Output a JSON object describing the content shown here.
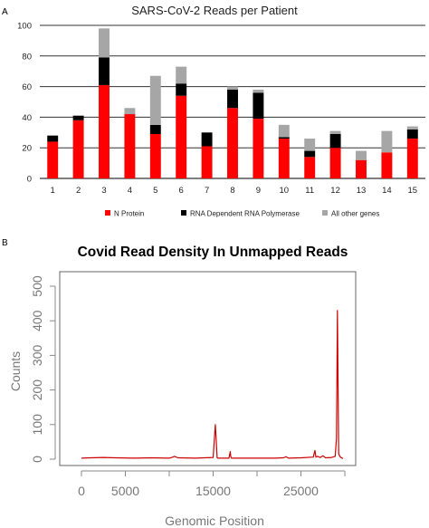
{
  "panel_labels": {
    "a": "A",
    "b": "B"
  },
  "chart_data": [
    {
      "type": "bar",
      "stacked": true,
      "title": "SARS-CoV-2 Reads per Patient",
      "xlabel": "",
      "ylabel": "",
      "categories": [
        "1",
        "2",
        "3",
        "4",
        "5",
        "6",
        "7",
        "8",
        "9",
        "10",
        "11",
        "12",
        "13",
        "14",
        "15"
      ],
      "ylim": [
        0,
        100
      ],
      "yticks": [
        0,
        20,
        40,
        60,
        80,
        100
      ],
      "grid": "horizontal",
      "legend_position": "bottom",
      "series": [
        {
          "name": "N Protein",
          "color": "#ff0000",
          "values": [
            24,
            38,
            61,
            42,
            29,
            54,
            21,
            46,
            39,
            26,
            14,
            20,
            12,
            17,
            26
          ]
        },
        {
          "name": "RNA Dependent RNA Polymerase",
          "color": "#000000",
          "values": [
            4,
            3,
            18,
            0,
            6,
            8,
            9,
            12,
            17,
            1,
            4,
            9,
            0,
            0,
            6
          ]
        },
        {
          "name": "All other genes",
          "color": "#a6a6a6",
          "values": [
            0,
            0,
            19,
            4,
            32,
            11,
            0,
            2,
            2,
            8,
            8,
            2,
            6,
            14,
            2
          ]
        }
      ]
    },
    {
      "type": "line",
      "title": "Covid Read Density In Unmapped Reads",
      "xlabel": "Genomic Position",
      "ylabel": "Counts",
      "xlim": [
        0,
        30000
      ],
      "ylim": [
        0,
        500
      ],
      "xticks": [
        0,
        5000,
        15000,
        25000
      ],
      "yticks": [
        0,
        100,
        200,
        300,
        400,
        500
      ],
      "grid": "none",
      "series": [
        {
          "name": "",
          "color": "#cc0000",
          "x": [
            0,
            1000,
            2500,
            4000,
            6000,
            8000,
            10000,
            10400,
            10600,
            11000,
            13000,
            15000,
            15250,
            15350,
            15450,
            15600,
            16000,
            16800,
            16950,
            17000,
            17100,
            18000,
            20000,
            22000,
            23000,
            23300,
            23600,
            25000,
            26400,
            26600,
            26700,
            26900,
            27200,
            27500,
            27800,
            28500,
            28900,
            29050,
            29150,
            29300,
            29500,
            29700,
            29800
          ],
          "y": [
            3,
            4,
            5,
            4,
            3,
            4,
            3,
            6,
            8,
            4,
            3,
            5,
            100,
            55,
            4,
            3,
            3,
            3,
            22,
            8,
            3,
            3,
            3,
            3,
            4,
            7,
            3,
            4,
            6,
            25,
            6,
            8,
            5,
            10,
            4,
            5,
            8,
            60,
            430,
            15,
            6,
            3,
            2
          ]
        }
      ]
    }
  ]
}
